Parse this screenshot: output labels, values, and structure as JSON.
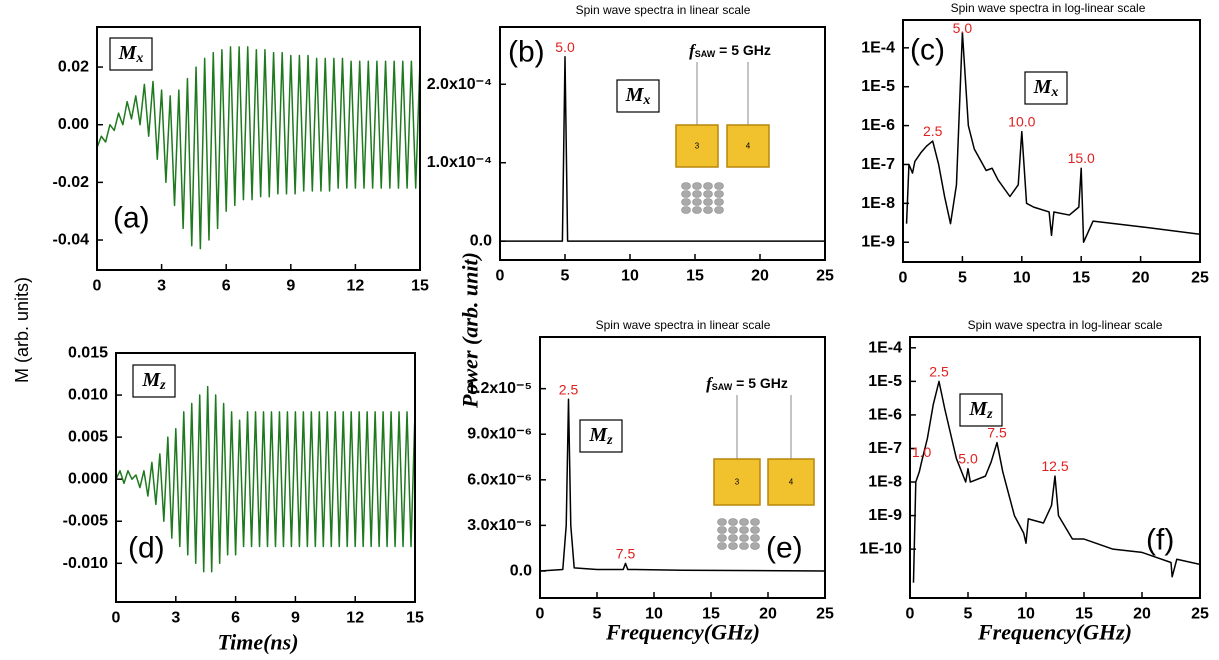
{
  "figure": {
    "ylabel_left": "M (arb. units)",
    "ylabel_mid": "Power (arb. unit)"
  },
  "chart_data": [
    {
      "type": "line",
      "panel": "(a)",
      "symbol": "M",
      "symbol_sub": "x",
      "color": "#1f7a1f",
      "x": [
        0,
        0.2,
        0.4,
        0.6,
        0.8,
        1,
        1.2,
        1.4,
        1.6,
        1.8,
        2,
        2.2,
        2.4,
        2.6,
        2.8,
        3,
        3.2,
        3.4,
        3.6,
        3.8,
        4,
        4.2,
        4.4,
        4.6,
        4.8,
        5,
        5.2,
        5.4,
        5.6,
        5.8,
        6,
        6.2,
        6.4,
        6.6,
        6.8,
        7,
        7.2,
        7.4,
        7.6,
        7.8,
        8,
        8.2,
        8.4,
        8.6,
        8.8,
        9,
        9.2,
        9.4,
        9.6,
        9.8,
        10,
        10.2,
        10.4,
        10.6,
        10.8,
        11,
        11.2,
        11.4,
        11.6,
        11.8,
        12,
        12.2,
        12.4,
        12.6,
        12.8,
        13,
        13.2,
        13.4,
        13.6,
        13.8,
        14,
        14.2,
        14.4,
        14.6,
        14.8,
        15
      ],
      "values": [
        -0.008,
        -0.004,
        -0.006,
        0.0,
        -0.002,
        0.004,
        0.0,
        0.008,
        0.002,
        0.01,
        0.0,
        0.014,
        -0.004,
        0.015,
        -0.012,
        0.012,
        -0.02,
        0.01,
        -0.028,
        0.012,
        -0.036,
        0.016,
        -0.042,
        0.02,
        -0.043,
        0.023,
        -0.04,
        0.025,
        -0.036,
        0.026,
        -0.03,
        0.027,
        -0.028,
        0.027,
        -0.026,
        0.027,
        -0.026,
        0.026,
        -0.025,
        0.026,
        -0.025,
        0.025,
        -0.024,
        0.025,
        -0.024,
        0.024,
        -0.024,
        0.024,
        -0.023,
        0.024,
        -0.023,
        0.023,
        -0.023,
        0.023,
        -0.023,
        0.023,
        -0.022,
        0.023,
        -0.022,
        0.022,
        -0.022,
        0.022,
        -0.022,
        0.022,
        -0.022,
        0.022,
        -0.022,
        0.022,
        -0.022,
        0.022,
        -0.022,
        0.022,
        -0.022,
        0.022,
        -0.022,
        0.022
      ],
      "xlim": [
        0,
        15
      ],
      "xticks": [
        0,
        3,
        6,
        9,
        12,
        15
      ],
      "ylim": [
        -0.0504,
        0.0339
      ],
      "yticks": [
        -0.04,
        -0.02,
        {
          "value": 0,
          "label": "0.00"
        },
        0.02
      ]
    },
    {
      "type": "line",
      "title": "Spin wave spectra in linear scale",
      "panel": "(b)",
      "symbol": "M",
      "symbol_sub": "x",
      "color": "#000000",
      "x": [
        0,
        4.8,
        5.0,
        5.2,
        25
      ],
      "values": [
        0,
        0,
        0.000235,
        0,
        0
      ],
      "peaks": [
        {
          "x": 5.0,
          "label": "5.0"
        }
      ],
      "inset": {
        "f": "f",
        "f_sub": "SAW",
        "f_rest": " = 5 GHz",
        "pads": [
          "3",
          "4"
        ]
      },
      "xlim": [
        0,
        25
      ],
      "xticks": [
        0,
        5,
        10,
        15,
        20,
        25
      ],
      "ylim": [
        -2.4e-05,
        0.000273
      ],
      "yticks": [
        {
          "value": 0,
          "label": "0.0"
        },
        {
          "value": 0.0001,
          "label": "1.0x10⁻⁴"
        },
        {
          "value": 0.0002,
          "label": "2.0x10⁻⁴"
        }
      ]
    },
    {
      "type": "line",
      "title": "Spin wave spectra in log-linear scale",
      "panel": "(c)",
      "symbol": "M",
      "symbol_sub": "x",
      "color": "#000000",
      "ylog": true,
      "x": [
        0.3,
        0.5,
        0.8,
        1.0,
        1.5,
        2.0,
        2.5,
        3.0,
        3.5,
        4.0,
        4.5,
        5.0,
        5.5,
        6.0,
        7.0,
        7.5,
        8.0,
        9.0,
        9.7,
        10.0,
        10.4,
        11.0,
        12.3,
        12.5,
        12.7,
        14.0,
        14.8,
        15.0,
        15.2,
        16.0,
        20.0,
        25.0
      ],
      "values": [
        3e-09,
        1e-07,
        6e-08,
        1.2e-07,
        2e-07,
        3e-07,
        4e-07,
        1e-07,
        1.5e-08,
        3e-09,
        3e-08,
        0.00025,
        1e-06,
        2.5e-07,
        7e-08,
        8e-08,
        4e-08,
        1.5e-08,
        3e-08,
        7e-07,
        1e-08,
        8e-09,
        6e-09,
        1.5e-09,
        6e-09,
        5e-09,
        8e-09,
        8e-08,
        1e-09,
        3.5e-09,
        2.5e-09,
        1.6e-09
      ],
      "peaks": [
        {
          "x": 2.5,
          "label": "2.5"
        },
        {
          "x": 5.0,
          "label": "5.0"
        },
        {
          "x": 10.0,
          "label": "10.0"
        },
        {
          "x": 15.0,
          "label": "15.0"
        }
      ],
      "xlim": [
        0,
        25
      ],
      "xticks": [
        0,
        5,
        10,
        15,
        20,
        25
      ],
      "ylim": [
        3.1e-10,
        0.00052
      ],
      "yticks": [
        {
          "value": 1e-09,
          "label": "1E-9"
        },
        {
          "value": 1e-08,
          "label": "1E-8"
        },
        {
          "value": 1e-07,
          "label": "1E-7"
        },
        {
          "value": 1e-06,
          "label": "1E-6"
        },
        {
          "value": 1e-05,
          "label": "1E-5"
        },
        {
          "value": 0.0001,
          "label": "1E-4"
        }
      ]
    },
    {
      "type": "line",
      "panel": "(d)",
      "symbol": "M",
      "symbol_sub": "z",
      "color": "#1f7a1f",
      "xlabel": "Time(ns)",
      "x": [
        0,
        0.2,
        0.4,
        0.6,
        0.8,
        1,
        1.2,
        1.4,
        1.6,
        1.8,
        2,
        2.2,
        2.4,
        2.6,
        2.8,
        3,
        3.2,
        3.4,
        3.6,
        3.8,
        4,
        4.2,
        4.4,
        4.6,
        4.8,
        5,
        5.2,
        5.4,
        5.6,
        5.8,
        6,
        6.2,
        6.4,
        6.6,
        6.8,
        7,
        7.2,
        7.4,
        7.6,
        7.8,
        8,
        8.2,
        8.4,
        8.6,
        8.8,
        9,
        9.2,
        9.4,
        9.6,
        9.8,
        10,
        10.2,
        10.4,
        10.6,
        10.8,
        11,
        11.2,
        11.4,
        11.6,
        11.8,
        12,
        12.2,
        12.4,
        12.6,
        12.8,
        13,
        13.2,
        13.4,
        13.6,
        13.8,
        14,
        14.2,
        14.4,
        14.6,
        14.8,
        15
      ],
      "values": [
        0,
        0.001,
        -0.0005,
        0.001,
        0,
        0.0005,
        -0.001,
        0.001,
        -0.002,
        0.002,
        -0.003,
        0.003,
        -0.005,
        0.005,
        -0.007,
        0.006,
        -0.008,
        0.008,
        -0.009,
        0.009,
        -0.01,
        0.01,
        -0.011,
        0.011,
        -0.011,
        0.01,
        -0.01,
        0.009,
        -0.009,
        0.008,
        -0.009,
        0.007,
        -0.008,
        0.008,
        -0.008,
        0.008,
        -0.008,
        0.008,
        -0.008,
        0.008,
        -0.008,
        0.008,
        -0.008,
        0.008,
        -0.008,
        0.008,
        -0.008,
        0.008,
        -0.008,
        0.008,
        -0.008,
        0.008,
        -0.008,
        0.008,
        -0.008,
        0.008,
        -0.008,
        0.008,
        -0.008,
        0.008,
        -0.008,
        0.008,
        -0.008,
        0.008,
        -0.008,
        0.008,
        -0.008,
        0.008,
        -0.008,
        0.008,
        -0.008,
        0.008,
        -0.008,
        0.008,
        -0.008,
        0.008
      ],
      "xlim": [
        0,
        15
      ],
      "xticks": [
        0,
        3,
        6,
        9,
        12,
        15
      ],
      "ylim": [
        -0.0146,
        0.015
      ],
      "yticks": [
        {
          "value": -0.01,
          "label": "-0.010"
        },
        -0.005,
        {
          "value": 0,
          "label": "0.000"
        },
        0.005,
        {
          "value": 0.01,
          "label": "0.010"
        },
        0.015
      ]
    },
    {
      "type": "line",
      "title": "Spin wave spectra in linear scale",
      "panel": "(e)",
      "symbol": "M",
      "symbol_sub": "z",
      "color": "#000000",
      "xlabel": "Frequency(GHz)",
      "x": [
        0,
        2.0,
        2.3,
        2.5,
        2.7,
        3.0,
        5,
        7.3,
        7.5,
        7.7,
        12.5,
        25
      ],
      "values": [
        0,
        1e-07,
        3e-06,
        1.13e-05,
        3e-06,
        2e-07,
        1e-07,
        1e-07,
        5e-07,
        1e-07,
        5e-08,
        0
      ],
      "peaks": [
        {
          "x": 2.5,
          "label": "2.5"
        },
        {
          "x": 7.5,
          "label": "7.5"
        }
      ],
      "inset": {
        "f": "f",
        "f_sub": "SAW",
        "f_rest": " = 5 GHz",
        "pads": [
          "3",
          "4"
        ]
      },
      "xlim": [
        0,
        25
      ],
      "xticks": [
        0,
        5,
        10,
        15,
        20,
        25
      ],
      "ylim": [
        -1.78e-06,
        1.54e-05
      ],
      "yticks": [
        {
          "value": 0,
          "label": "0.0"
        },
        {
          "value": 3e-06,
          "label": "3.0x10⁻⁶"
        },
        {
          "value": 6e-06,
          "label": "6.0x10⁻⁶"
        },
        {
          "value": 9e-06,
          "label": "9.0x10⁻⁶"
        },
        {
          "value": 1.2e-05,
          "label": "1.2x10⁻⁵"
        }
      ]
    },
    {
      "type": "line",
      "title": "Spin wave spectra in log-linear scale",
      "panel": "(f)",
      "symbol": "M",
      "symbol_sub": "z",
      "color": "#000000",
      "ylog": true,
      "xlabel": "Frequency(GHz)",
      "x": [
        0.3,
        0.5,
        0.8,
        1.0,
        1.5,
        2.0,
        2.5,
        3.0,
        4.0,
        4.8,
        5.0,
        5.2,
        6.5,
        7.0,
        7.5,
        8.0,
        9.0,
        9.8,
        10.0,
        10.2,
        11.5,
        12.2,
        12.5,
        12.8,
        14.0,
        15.0,
        17.5,
        20.0,
        22.5,
        22.6,
        23,
        25
      ],
      "values": [
        1e-11,
        1e-08,
        2e-08,
        4e-08,
        2e-07,
        2e-06,
        1e-05,
        1.5e-06,
        5e-08,
        1e-08,
        2.5e-08,
        1e-08,
        1.5e-08,
        4e-08,
        1.5e-07,
        2e-08,
        1e-09,
        3e-10,
        1.5e-10,
        8e-10,
        6e-10,
        2e-09,
        1.5e-08,
        1e-09,
        2e-10,
        2e-10,
        1e-10,
        8e-11,
        4e-11,
        1.5e-11,
        5e-11,
        3.5e-11
      ],
      "peaks": [
        {
          "x": 1.0,
          "label": "1.0"
        },
        {
          "x": 2.5,
          "label": "2.5"
        },
        {
          "x": 5.0,
          "label": "5.0"
        },
        {
          "x": 7.5,
          "label": "7.5"
        },
        {
          "x": 12.5,
          "label": "12.5"
        }
      ],
      "xlim": [
        0,
        25
      ],
      "xticks": [
        0,
        5,
        10,
        15,
        20,
        25
      ],
      "ylim": [
        3.5e-12,
        0.00021
      ],
      "yticks": [
        {
          "value": 1e-10,
          "label": "1E-10"
        },
        {
          "value": 1e-09,
          "label": "1E-9"
        },
        {
          "value": 1e-08,
          "label": "1E-8"
        },
        {
          "value": 1e-07,
          "label": "1E-7"
        },
        {
          "value": 1e-06,
          "label": "1E-6"
        },
        {
          "value": 1e-05,
          "label": "1E-5"
        },
        {
          "value": 0.0001,
          "label": "1E-4"
        }
      ]
    }
  ]
}
